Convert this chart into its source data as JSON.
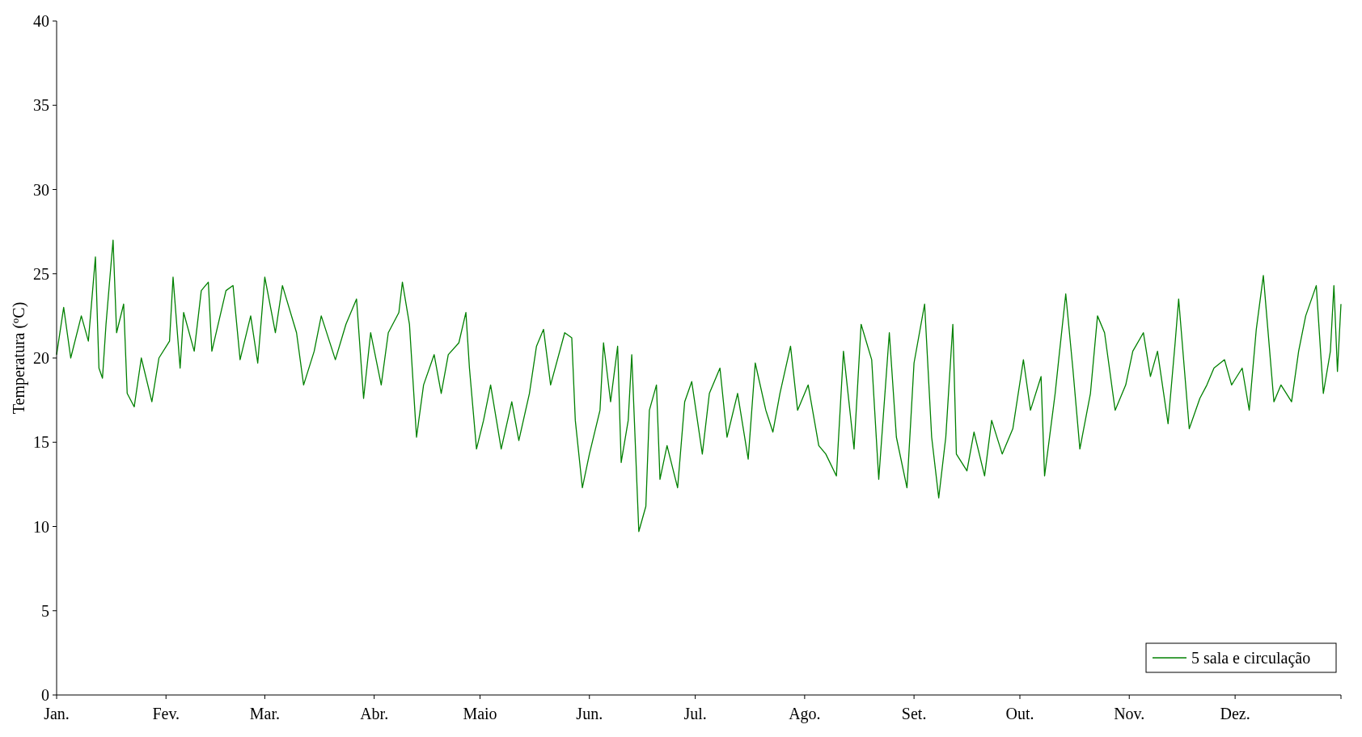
{
  "chart_data": {
    "type": "line",
    "ylabel": "Temperatura (ºC)",
    "xlim": [
      "--01-01",
      "--12-31"
    ],
    "ylim": [
      0,
      40
    ],
    "yticks": [
      0,
      5,
      10,
      15,
      20,
      25,
      30,
      35,
      40
    ],
    "xticks": [
      {
        "value": "--01-01",
        "label": "Jan."
      },
      {
        "value": "--02-01",
        "label": "Fev."
      },
      {
        "value": "--03-01",
        "label": "Mar."
      },
      {
        "value": "--04-01",
        "label": "Abr."
      },
      {
        "value": "--05-01",
        "label": "Maio"
      },
      {
        "value": "--06-01",
        "label": "Jun."
      },
      {
        "value": "--07-01",
        "label": "Jul."
      },
      {
        "value": "--08-01",
        "label": "Ago."
      },
      {
        "value": "--09-01",
        "label": "Set."
      },
      {
        "value": "--10-01",
        "label": "Out."
      },
      {
        "value": "--11-01",
        "label": "Nov."
      },
      {
        "value": "--12-01",
        "label": "Dez."
      },
      {
        "value": "--12-31",
        "label": null
      }
    ],
    "legend": "bottom right",
    "grid": false,
    "marker": "none",
    "line_style": "solid",
    "series": [
      {
        "name": "5 sala e circulação",
        "color": "#008000",
        "x": [
          "--01-01",
          "--01-03",
          "--01-05",
          "--01-08",
          "--01-10",
          "--01-12",
          "--01-13",
          "--01-14",
          "--01-15",
          "--01-17",
          "--01-18",
          "--01-20",
          "--01-21",
          "--01-23",
          "--01-25",
          "--01-28",
          "--01-30",
          "--02-02",
          "--02-03",
          "--02-05",
          "--02-06",
          "--02-09",
          "--02-11",
          "--02-13",
          "--02-14",
          "--02-18",
          "--02-20",
          "--02-22",
          "--02-25",
          "--02-27",
          "--03-01",
          "--03-04",
          "--03-06",
          "--03-10",
          "--03-12",
          "--03-15",
          "--03-17",
          "--03-21",
          "--03-24",
          "--03-27",
          "--03-29",
          "--03-31",
          "--04-03",
          "--04-05",
          "--04-08",
          "--04-09",
          "--04-11",
          "--04-13",
          "--04-15",
          "--04-18",
          "--04-20",
          "--04-22",
          "--04-25",
          "--04-27",
          "--04-28",
          "--04-30",
          "--05-02",
          "--05-04",
          "--05-07",
          "--05-10",
          "--05-12",
          "--05-15",
          "--05-17",
          "--05-19",
          "--05-21",
          "--05-25",
          "--05-27",
          "--05-28",
          "--05-30",
          "--06-01",
          "--06-04",
          "--06-05",
          "--06-07",
          "--06-09",
          "--06-10",
          "--06-12",
          "--06-13",
          "--06-15",
          "--06-17",
          "--06-18",
          "--06-20",
          "--06-21",
          "--06-23",
          "--06-26",
          "--06-28",
          "--06-30",
          "--07-03",
          "--07-05",
          "--07-08",
          "--07-10",
          "--07-13",
          "--07-16",
          "--07-18",
          "--07-21",
          "--07-23",
          "--07-25",
          "--07-28",
          "--07-30",
          "--08-02",
          "--08-05",
          "--08-07",
          "--08-10",
          "--08-12",
          "--08-15",
          "--08-17",
          "--08-20",
          "--08-22",
          "--08-25",
          "--08-27",
          "--08-30",
          "--09-01",
          "--09-04",
          "--09-06",
          "--09-08",
          "--09-10",
          "--09-12",
          "--09-13",
          "--09-16",
          "--09-18",
          "--09-21",
          "--09-23",
          "--09-26",
          "--09-29",
          "--10-02",
          "--10-04",
          "--10-07",
          "--10-08",
          "--10-11",
          "--10-12",
          "--10-14",
          "--10-16",
          "--10-18",
          "--10-21",
          "--10-23",
          "--10-25",
          "--10-28",
          "--10-31",
          "--11-02",
          "--11-05",
          "--11-07",
          "--11-09",
          "--11-12",
          "--11-14",
          "--11-15",
          "--11-18",
          "--11-21",
          "--11-23",
          "--11-25",
          "--11-28",
          "--11-30",
          "--12-03",
          "--12-05",
          "--12-07",
          "--12-09",
          "--12-12",
          "--12-14",
          "--12-17",
          "--12-19",
          "--12-21",
          "--12-24",
          "--12-26",
          "--12-28",
          "--12-29",
          "--12-30",
          "--12-31"
        ],
        "values": [
          20.2,
          23,
          20,
          22.5,
          21,
          26,
          19.4,
          18.8,
          22,
          27,
          21.5,
          23.2,
          17.9,
          17.1,
          20,
          17.4,
          20,
          21,
          24.8,
          19.4,
          22.7,
          20.4,
          24,
          24.5,
          20.4,
          24,
          24.3,
          19.9,
          22.5,
          19.7,
          24.8,
          21.5,
          24.3,
          21.5,
          18.4,
          20.4,
          22.5,
          19.9,
          22,
          23.5,
          17.6,
          21.5,
          18.4,
          21.5,
          22.7,
          24.5,
          22,
          15.3,
          18.4,
          20.2,
          17.9,
          20.2,
          20.9,
          22.7,
          19.4,
          14.6,
          16.3,
          18.4,
          14.6,
          17.4,
          15.1,
          17.9,
          20.7,
          21.7,
          18.4,
          21.5,
          21.2,
          16.3,
          12.3,
          14.3,
          16.9,
          20.9,
          17.4,
          20.7,
          13.8,
          16.3,
          20.2,
          9.7,
          11.2,
          16.9,
          18.4,
          12.8,
          14.8,
          12.3,
          17.4,
          18.6,
          14.3,
          17.9,
          19.4,
          15.3,
          17.9,
          14,
          19.7,
          16.9,
          15.6,
          17.9,
          20.7,
          16.9,
          18.4,
          14.8,
          14.3,
          13,
          20.4,
          14.6,
          22,
          19.9,
          12.8,
          21.5,
          15.3,
          12.3,
          19.7,
          23.2,
          15.3,
          11.7,
          15.3,
          22,
          14.3,
          13.3,
          15.6,
          13,
          16.3,
          14.3,
          15.8,
          19.9,
          16.9,
          18.9,
          13,
          17.9,
          19.9,
          23.8,
          19.4,
          14.6,
          17.9,
          22.5,
          21.5,
          16.9,
          18.4,
          20.4,
          21.5,
          18.9,
          20.4,
          16.1,
          20.9,
          23.5,
          15.8,
          17.6,
          18.4,
          19.4,
          19.9,
          18.4,
          19.4,
          16.9,
          21.7,
          24.9,
          17.4,
          18.4,
          17.4,
          20.4,
          22.5,
          24.3,
          17.9,
          20.4,
          24.3,
          19.2,
          23.2
        ]
      }
    ]
  }
}
